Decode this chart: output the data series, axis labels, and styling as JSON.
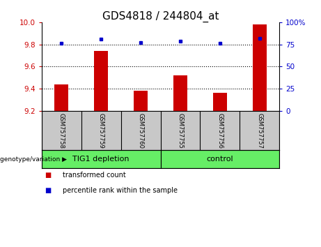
{
  "title": "GDS4818 / 244804_at",
  "samples": [
    "GSM757758",
    "GSM757759",
    "GSM757760",
    "GSM757755",
    "GSM757756",
    "GSM757757"
  ],
  "bar_values": [
    9.44,
    9.74,
    9.38,
    9.52,
    9.36,
    9.98
  ],
  "percentile_values": [
    76,
    81,
    77,
    79,
    76,
    82
  ],
  "y_min": 9.2,
  "y_max": 10.0,
  "y_ticks": [
    9.2,
    9.4,
    9.6,
    9.8,
    10.0
  ],
  "y2_ticks": [
    0,
    25,
    50,
    75,
    100
  ],
  "bar_color": "#CC0000",
  "dot_color": "#0000CC",
  "background_label": "#C8C8C8",
  "background_group": "#66EE66",
  "legend_bar_label": "transformed count",
  "legend_dot_label": "percentile rank within the sample",
  "genotype_label": "genotype/variation",
  "title_fontsize": 11,
  "tick_fontsize": 7.5,
  "sample_fontsize": 6,
  "group_fontsize": 8,
  "legend_fontsize": 7
}
